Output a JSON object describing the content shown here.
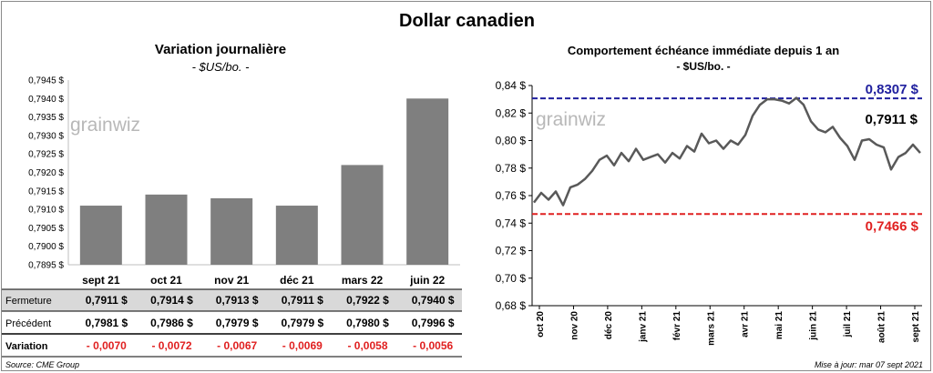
{
  "header": {
    "title": "Dollar canadien"
  },
  "left_chart": {
    "title": "Variation  journalière",
    "subtitle": "- $US/bo. -",
    "watermark": "grainwiz"
  },
  "right_chart": {
    "title": "Comportement échéance immédiate depuis 1 an",
    "subtitle": "- $US/bo. -",
    "watermark": "grainwiz",
    "high_label": "0,8307 $",
    "low_label": "0,7466 $",
    "last_label": "0,7911 $"
  },
  "table": {
    "rows": [
      {
        "label": "Fermeture",
        "values": [
          "0,7911  $",
          "0,7914  $",
          "0,7913  $",
          "0,7911  $",
          "0,7922  $",
          "0,7940  $"
        ],
        "shaded": true
      },
      {
        "label": "Précédent",
        "values": [
          "0,7981  $",
          "0,7986  $",
          "0,7979  $",
          "0,7979  $",
          "0,7980  $",
          "0,7996  $"
        ],
        "shaded": false
      },
      {
        "label": "Variation",
        "values": [
          "- 0,0070",
          "- 0,0072",
          "- 0,0067",
          "- 0,0069",
          "- 0,0058",
          "- 0,0056"
        ],
        "shaded": false
      }
    ]
  },
  "footer": {
    "source": "Source: CME Group",
    "updated": "Mise à jour: mar 07 sept 2021"
  },
  "colors": {
    "bar": "#7f7f7f",
    "line": "#595959",
    "high": "#1f1f9e",
    "low": "#e02020",
    "negative": "#e02020"
  },
  "chart_data": [
    {
      "type": "bar",
      "categories": [
        "sept 21",
        "oct 21",
        "nov 21",
        "déc 21",
        "mars 22",
        "juin 22"
      ],
      "values": [
        0.7911,
        0.7914,
        0.7913,
        0.7911,
        0.7922,
        0.794
      ],
      "ylim": [
        0.7895,
        0.7945
      ],
      "yticks": [
        "0,7895 $",
        "0,7900 $",
        "0,7905 $",
        "0,7910 $",
        "0,7915 $",
        "0,7920 $",
        "0,7925 $",
        "0,7930 $",
        "0,7935 $",
        "0,7940 $",
        "0,7945 $"
      ],
      "grid": false
    },
    {
      "type": "line",
      "x_labels": [
        "oct 20",
        "nov 20",
        "déc 20",
        "janv 21",
        "févr 21",
        "mars 21",
        "avr 21",
        "mai 21",
        "juin 21",
        "juil 21",
        "août 21",
        "sept 21"
      ],
      "values": [
        0.755,
        0.762,
        0.757,
        0.763,
        0.753,
        0.766,
        0.768,
        0.772,
        0.778,
        0.786,
        0.789,
        0.782,
        0.791,
        0.785,
        0.794,
        0.786,
        0.788,
        0.79,
        0.784,
        0.791,
        0.787,
        0.796,
        0.792,
        0.805,
        0.798,
        0.8,
        0.794,
        0.8,
        0.797,
        0.804,
        0.818,
        0.826,
        0.83,
        0.83,
        0.829,
        0.827,
        0.831,
        0.826,
        0.814,
        0.808,
        0.806,
        0.81,
        0.802,
        0.796,
        0.786,
        0.8,
        0.801,
        0.797,
        0.795,
        0.779,
        0.788,
        0.791,
        0.797,
        0.791
      ],
      "ylim": [
        0.68,
        0.84
      ],
      "yticks": [
        "0,68 $",
        "0,70 $",
        "0,72 $",
        "0,74 $",
        "0,76 $",
        "0,78 $",
        "0,80 $",
        "0,82 $",
        "0,84 $"
      ],
      "ref_high": 0.8307,
      "ref_low": 0.7466,
      "grid": false
    }
  ]
}
